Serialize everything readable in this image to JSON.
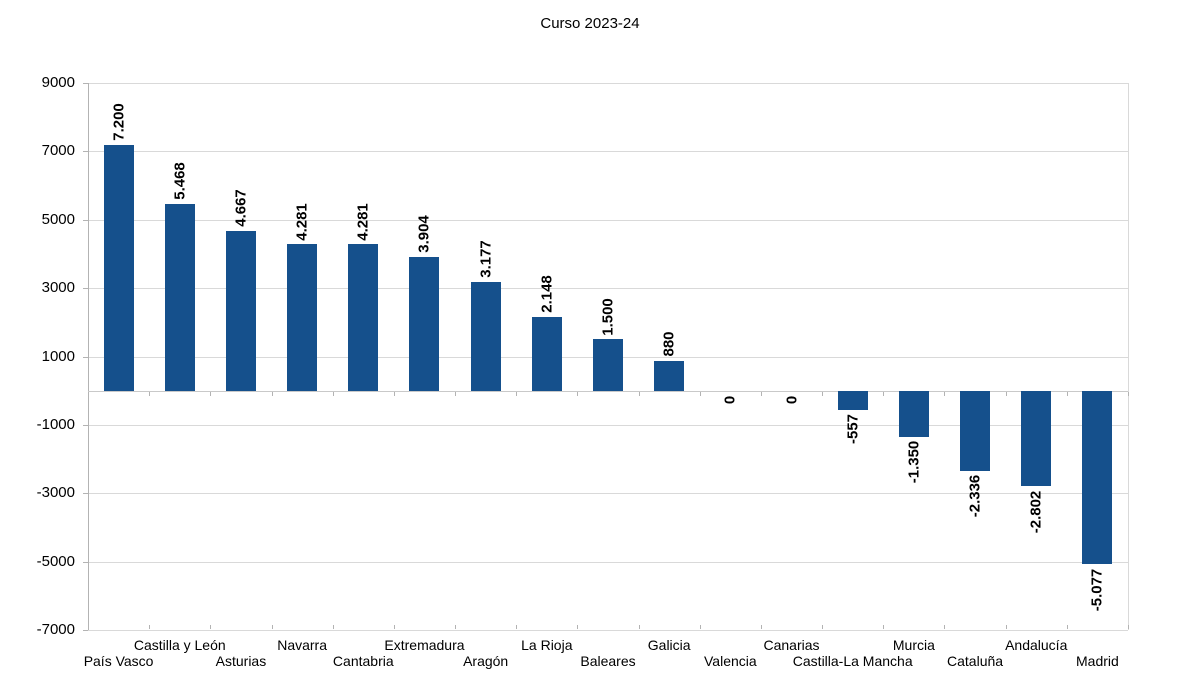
{
  "title": "Curso 2023-24",
  "chart_data": {
    "type": "bar",
    "title": "Curso 2023-24",
    "categories": [
      "País Vasco",
      "Castilla y León",
      "Asturias",
      "Navarra",
      "Cantabria",
      "Extremadura",
      "Aragón",
      "La Rioja",
      "Baleares",
      "Galicia",
      "Valencia",
      "Canarias",
      "Castilla-La Mancha",
      "Murcia",
      "Cataluña",
      "Andalucía",
      "Madrid"
    ],
    "values": [
      7200,
      5468,
      4667,
      4281,
      4281,
      3904,
      3177,
      2148,
      1500,
      880,
      0,
      0,
      -557,
      -1350,
      -2336,
      -2802,
      -5077
    ],
    "value_labels": [
      "7.200",
      "5.468",
      "4.667",
      "4.281",
      "4.281",
      "3.904",
      "3.177",
      "2.148",
      "1.500",
      "880",
      "0",
      "0",
      "-557",
      "-1.350",
      "-2.336",
      "-2.802",
      "-5.077"
    ],
    "yticks": [
      9000,
      7000,
      5000,
      3000,
      1000,
      -1000,
      -3000,
      -5000,
      -7000
    ],
    "ylim": [
      -7000,
      9000
    ],
    "xlabel": "",
    "ylabel": "",
    "grid": true,
    "legend": "none",
    "value_label_rotation_deg": 90,
    "bar_color": "#15508c",
    "gridline_color": "#d9d9d9",
    "axis_color": "#b3b3b3",
    "zero_line_color": "#c9c9c9",
    "text_color": "#000000",
    "background": "#ffffff"
  }
}
